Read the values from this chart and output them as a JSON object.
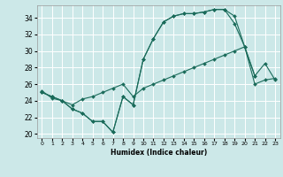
{
  "xlabel": "Humidex (Indice chaleur)",
  "background_color": "#cce8e8",
  "grid_color": "#ffffff",
  "line_color": "#1a6b5a",
  "x_ticks": [
    0,
    1,
    2,
    3,
    4,
    5,
    6,
    7,
    8,
    9,
    10,
    11,
    12,
    13,
    14,
    15,
    16,
    17,
    18,
    19,
    20,
    21,
    22,
    23
  ],
  "ylim": [
    19.5,
    35.5
  ],
  "xlim": [
    -0.5,
    23.5
  ],
  "yticks": [
    20,
    22,
    24,
    26,
    28,
    30,
    32,
    34
  ],
  "series1_x": [
    0,
    1,
    2,
    3,
    4,
    5,
    6,
    7,
    8,
    9,
    10,
    11,
    12,
    13,
    14,
    15,
    16,
    17,
    18,
    19,
    20,
    21
  ],
  "series1_y": [
    25.0,
    24.5,
    24.0,
    23.0,
    22.5,
    21.5,
    21.5,
    20.2,
    24.5,
    23.5,
    29.0,
    31.5,
    33.5,
    34.2,
    34.5,
    34.5,
    34.7,
    35.0,
    35.0,
    34.2,
    30.5,
    27.0
  ],
  "series2_x": [
    0,
    1,
    2,
    3,
    4,
    5,
    6,
    7,
    8,
    9,
    10,
    11,
    12,
    13,
    14,
    15,
    16,
    17,
    18,
    19,
    20,
    21,
    22,
    23
  ],
  "series2_y": [
    25.0,
    24.5,
    24.0,
    23.0,
    22.5,
    21.5,
    21.5,
    20.2,
    24.5,
    23.5,
    29.0,
    31.5,
    33.5,
    34.2,
    34.5,
    34.5,
    34.7,
    35.0,
    35.0,
    33.3,
    30.5,
    27.0,
    28.5,
    26.5
  ],
  "series3_x": [
    0,
    1,
    2,
    3,
    4,
    5,
    6,
    7,
    8,
    9,
    10,
    11,
    12,
    13,
    14,
    15,
    16,
    17,
    18,
    19,
    20,
    21,
    22,
    23
  ],
  "series3_y": [
    25.2,
    24.3,
    24.0,
    23.5,
    24.2,
    24.5,
    25.0,
    25.5,
    26.0,
    24.5,
    25.5,
    26.0,
    26.5,
    27.0,
    27.5,
    28.0,
    28.5,
    29.0,
    29.5,
    30.0,
    30.5,
    26.0,
    26.5,
    26.7
  ]
}
